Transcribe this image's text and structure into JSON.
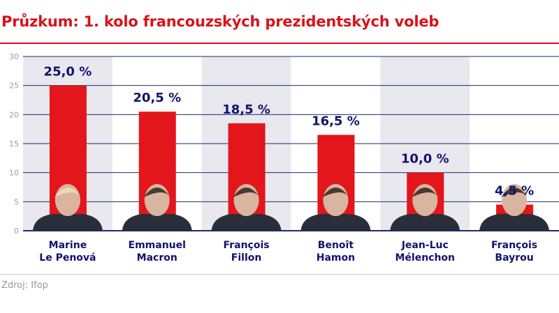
{
  "title": "Průzkum: 1. kolo francouzských prezidentských voleb",
  "source": "Zdroj: Ifop",
  "colors": {
    "bar": "#e2161b",
    "label": "#12126b",
    "title": "#d7141a",
    "shade": "#e8e8ee",
    "grid": "#1e2a6b"
  },
  "chart_data": {
    "type": "bar",
    "categories": [
      [
        "Marine",
        "Le Penová"
      ],
      [
        "Emmanuel",
        "Macron"
      ],
      [
        "François",
        "Fillon"
      ],
      [
        "Benoît",
        "Hamon"
      ],
      [
        "Jean-Luc",
        "Mélenchon"
      ],
      [
        "François",
        "Bayrou"
      ]
    ],
    "values": [
      25.0,
      20.5,
      18.5,
      16.5,
      10.0,
      4.5
    ],
    "data_labels": [
      "25,0 %",
      "20,5 %",
      "18,5 %",
      "16,5 %",
      "10,0 %",
      "4,5 %"
    ],
    "yticks": [
      0,
      5,
      10,
      15,
      20,
      25,
      30
    ],
    "ylim": [
      0,
      30
    ],
    "grid": true,
    "candidate_photos": true
  }
}
